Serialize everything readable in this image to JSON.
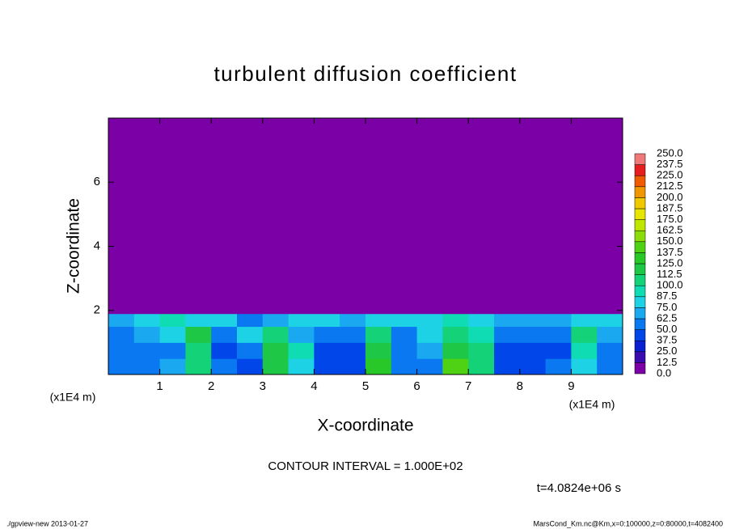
{
  "chart_data": {
    "type": "heatmap",
    "title": "turbulent diffusion coefficient",
    "xlabel": "X-coordinate",
    "ylabel": "Z-coordinate",
    "xunit": "(x1E4 m)",
    "yunit": "(x1E4 m)",
    "xlim": [
      0,
      10
    ],
    "ylim": [
      0,
      8
    ],
    "xticks": [
      1,
      2,
      3,
      4,
      5,
      6,
      7,
      8,
      9
    ],
    "yticks": [
      2,
      4,
      6
    ],
    "xbins": [
      0,
      0.5,
      1,
      1.5,
      2,
      2.5,
      3,
      3.5,
      4,
      4.5,
      5,
      5.5,
      6,
      6.5,
      7,
      7.5,
      8,
      8.5,
      9,
      9.5,
      10
    ],
    "ybins": [
      0,
      0.5,
      1,
      1.5,
      1.9,
      8
    ],
    "values": [
      [
        60,
        55,
        70,
        110,
        50,
        45,
        120,
        80,
        40,
        45,
        130,
        50,
        60,
        140,
        110,
        40,
        40,
        50,
        80,
        60
      ],
      [
        55,
        50,
        60,
        100,
        45,
        50,
        115,
        90,
        45,
        40,
        115,
        55,
        70,
        120,
        100,
        45,
        40,
        45,
        90,
        55
      ],
      [
        60,
        65,
        75,
        120,
        60,
        80,
        110,
        70,
        55,
        60,
        100,
        60,
        75,
        110,
        95,
        60,
        55,
        60,
        100,
        70
      ],
      [
        70,
        80,
        90,
        85,
        75,
        60,
        70,
        85,
        75,
        70,
        80,
        75,
        80,
        90,
        85,
        70,
        65,
        70,
        75,
        80
      ],
      [
        0,
        0,
        0,
        0,
        0,
        0,
        0,
        0,
        0,
        0,
        0,
        0,
        0,
        0,
        0,
        0,
        0,
        0,
        0,
        0
      ]
    ],
    "colorbar": {
      "levels": [
        {
          "value": 0,
          "label": "0.0"
        },
        12.5,
        {
          "value": 25,
          "label": "25.0"
        },
        37.5,
        {
          "value": 50,
          "label": "50.0"
        },
        62.5,
        {
          "value": 75,
          "label": "75.0"
        },
        87.5,
        {
          "value": 100,
          "label": "100.0"
        },
        112.5,
        {
          "value": 125,
          "label": "125.0"
        },
        137.5,
        {
          "value": 150,
          "label": "150.0"
        },
        162.5,
        {
          "value": 175,
          "label": "175.0"
        },
        187.5,
        {
          "value": 200,
          "label": "200.0"
        },
        212.5,
        {
          "value": 225,
          "label": "225.0"
        },
        237.5,
        {
          "value": 250,
          "label": "250.0"
        }
      ],
      "colors": [
        "#7b00a6",
        "#3a0cb0",
        "#0a1ed2",
        "#0046e8",
        "#0a78f0",
        "#1aa8f0",
        "#1ed2e6",
        "#10dcb4",
        "#14d278",
        "#1ec846",
        "#28c828",
        "#50d214",
        "#8cdc0a",
        "#bee600",
        "#e6e600",
        "#f0c800",
        "#f09600",
        "#f05a00",
        "#e61e1e",
        "#f07878"
      ]
    },
    "contour_interval": "CONTOUR INTERVAL = 1.000E+02",
    "time_label": "t=4.0824e+06 s",
    "footer_left": "./gpview-new  2013-01-27",
    "footer_right": "MarsCond_Km.nc@Km,x=0:100000,z=0:80000,t=4082400"
  }
}
